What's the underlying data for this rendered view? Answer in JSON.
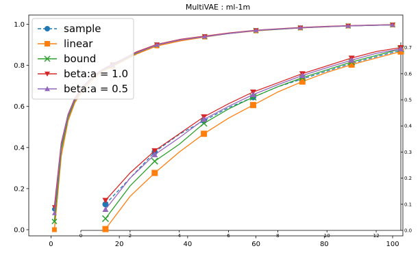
{
  "chart_data": [
    {
      "type": "line",
      "title": "MultiVAE : ml-1m",
      "xlabel": "",
      "ylabel": "",
      "xlim": [
        -6.5,
        103
      ],
      "ylim": [
        -0.03,
        1.045
      ],
      "xticks": [
        0,
        20,
        40,
        60,
        80,
        100
      ],
      "yticks": [
        0.0,
        0.2,
        0.4,
        0.6,
        0.8,
        1.0
      ],
      "ytick_labels": [
        "0.0",
        "0.2",
        "0.4",
        "0.6",
        "0.8",
        "1.0"
      ],
      "grid": false,
      "legend_position": "top-left",
      "markers_at_x": [
        1,
        18,
        31,
        45,
        60,
        73,
        87,
        100
      ],
      "series": [
        {
          "name": "sample",
          "color": "#1f77b4",
          "marker": "circle",
          "dashed": true,
          "x": [
            1,
            3,
            5,
            7,
            9,
            11,
            13,
            15,
            18,
            21,
            25,
            31,
            38,
            45,
            52,
            60,
            66,
            73,
            80,
            87,
            94,
            100
          ],
          "y": [
            0.1,
            0.4,
            0.55,
            0.63,
            0.68,
            0.72,
            0.75,
            0.775,
            0.8,
            0.825,
            0.86,
            0.9,
            0.925,
            0.94,
            0.955,
            0.97,
            0.975,
            0.983,
            0.988,
            0.992,
            0.995,
            0.997
          ]
        },
        {
          "name": "linear",
          "color": "#ff7f0e",
          "marker": "square",
          "dashed": false,
          "x": [
            1,
            3,
            5,
            7,
            9,
            11,
            13,
            15,
            18,
            21,
            25,
            31,
            38,
            45,
            52,
            60,
            66,
            73,
            80,
            87,
            94,
            100
          ],
          "y": [
            0.0,
            0.36,
            0.53,
            0.62,
            0.67,
            0.71,
            0.745,
            0.77,
            0.795,
            0.82,
            0.855,
            0.895,
            0.92,
            0.938,
            0.955,
            0.968,
            0.975,
            0.982,
            0.987,
            0.992,
            0.995,
            0.997
          ]
        },
        {
          "name": "bound",
          "color": "#2ca02c",
          "marker": "x",
          "dashed": false,
          "x": [
            1,
            3,
            5,
            7,
            9,
            11,
            13,
            15,
            18,
            21,
            25,
            31,
            38,
            45,
            52,
            60,
            66,
            73,
            80,
            87,
            94,
            100
          ],
          "y": [
            0.04,
            0.39,
            0.545,
            0.63,
            0.68,
            0.72,
            0.75,
            0.775,
            0.8,
            0.825,
            0.86,
            0.9,
            0.925,
            0.94,
            0.955,
            0.97,
            0.975,
            0.983,
            0.988,
            0.992,
            0.995,
            0.997
          ]
        },
        {
          "name": "beta:a = 1.0",
          "color": "#d62728",
          "marker": "triangle-down",
          "dashed": false,
          "x": [
            1,
            3,
            5,
            7,
            9,
            11,
            13,
            15,
            18,
            21,
            25,
            31,
            38,
            45,
            52,
            60,
            66,
            73,
            80,
            87,
            94,
            100
          ],
          "y": [
            0.11,
            0.42,
            0.56,
            0.64,
            0.69,
            0.725,
            0.755,
            0.78,
            0.805,
            0.83,
            0.865,
            0.902,
            0.927,
            0.942,
            0.957,
            0.971,
            0.977,
            0.984,
            0.989,
            0.993,
            0.996,
            0.998
          ]
        },
        {
          "name": "beta:a = 0.5",
          "color": "#9467bd",
          "marker": "triangle-up",
          "dashed": false,
          "x": [
            1,
            3,
            5,
            7,
            9,
            11,
            13,
            15,
            18,
            21,
            25,
            31,
            38,
            45,
            52,
            60,
            66,
            73,
            80,
            87,
            94,
            100
          ],
          "y": [
            0.08,
            0.41,
            0.555,
            0.635,
            0.685,
            0.722,
            0.752,
            0.778,
            0.802,
            0.828,
            0.862,
            0.9,
            0.925,
            0.94,
            0.955,
            0.97,
            0.976,
            0.983,
            0.988,
            0.992,
            0.995,
            0.997
          ]
        }
      ]
    },
    {
      "type": "line",
      "title": "",
      "xlabel": "",
      "ylabel": "",
      "xlim": [
        0,
        13
      ],
      "ylim": [
        0,
        0.72
      ],
      "xticks": [
        0,
        2,
        4,
        6,
        8,
        10,
        12
      ],
      "yticks": [
        0.0,
        0.1,
        0.2,
        0.3,
        0.4,
        0.5,
        0.6,
        0.7
      ],
      "ytick_labels": [
        "0.0",
        "0.1",
        "0.2",
        "0.3",
        "0.4",
        "0.5",
        "0.6",
        "0.7"
      ],
      "grid": false,
      "ytick_side": "right",
      "placement": "inset, lower-right",
      "markers_at_x": [
        1,
        3,
        5,
        7,
        9,
        11,
        13
      ],
      "series": [
        {
          "name": "sample",
          "color": "#1f77b4",
          "marker": "circle",
          "dashed": true,
          "x": [
            1,
            2,
            3,
            4,
            5,
            6,
            7,
            8,
            9,
            10,
            11,
            12,
            13
          ],
          "y": [
            0.1,
            0.2,
            0.3,
            0.368,
            0.42,
            0.47,
            0.51,
            0.55,
            0.58,
            0.61,
            0.64,
            0.665,
            0.69
          ]
        },
        {
          "name": "linear",
          "color": "#ff7f0e",
          "marker": "square",
          "dashed": false,
          "x": [
            1,
            2,
            3,
            4,
            5,
            6,
            7,
            8,
            9,
            10,
            11,
            12,
            13
          ],
          "y": [
            0.005,
            0.13,
            0.22,
            0.3,
            0.37,
            0.43,
            0.48,
            0.53,
            0.57,
            0.605,
            0.635,
            0.66,
            0.685
          ]
        },
        {
          "name": "bound",
          "color": "#2ca02c",
          "marker": "x",
          "dashed": false,
          "x": [
            1,
            2,
            3,
            4,
            5,
            6,
            7,
            8,
            9,
            10,
            11,
            12,
            13
          ],
          "y": [
            0.045,
            0.17,
            0.265,
            0.33,
            0.41,
            0.465,
            0.51,
            0.55,
            0.585,
            0.615,
            0.645,
            0.67,
            0.695
          ]
        },
        {
          "name": "beta:a = 1.0",
          "color": "#d62728",
          "marker": "triangle-down",
          "dashed": false,
          "x": [
            1,
            2,
            3,
            4,
            5,
            6,
            7,
            8,
            9,
            10,
            11,
            12,
            13
          ],
          "y": [
            0.115,
            0.22,
            0.305,
            0.37,
            0.435,
            0.485,
            0.53,
            0.565,
            0.6,
            0.63,
            0.66,
            0.685,
            0.7
          ]
        },
        {
          "name": "beta:a = 0.5",
          "color": "#9467bd",
          "marker": "triangle-up",
          "dashed": false,
          "x": [
            1,
            2,
            3,
            4,
            5,
            6,
            7,
            8,
            9,
            10,
            11,
            12,
            13
          ],
          "y": [
            0.08,
            0.2,
            0.29,
            0.355,
            0.425,
            0.475,
            0.52,
            0.558,
            0.593,
            0.623,
            0.652,
            0.678,
            0.695
          ]
        }
      ]
    }
  ]
}
